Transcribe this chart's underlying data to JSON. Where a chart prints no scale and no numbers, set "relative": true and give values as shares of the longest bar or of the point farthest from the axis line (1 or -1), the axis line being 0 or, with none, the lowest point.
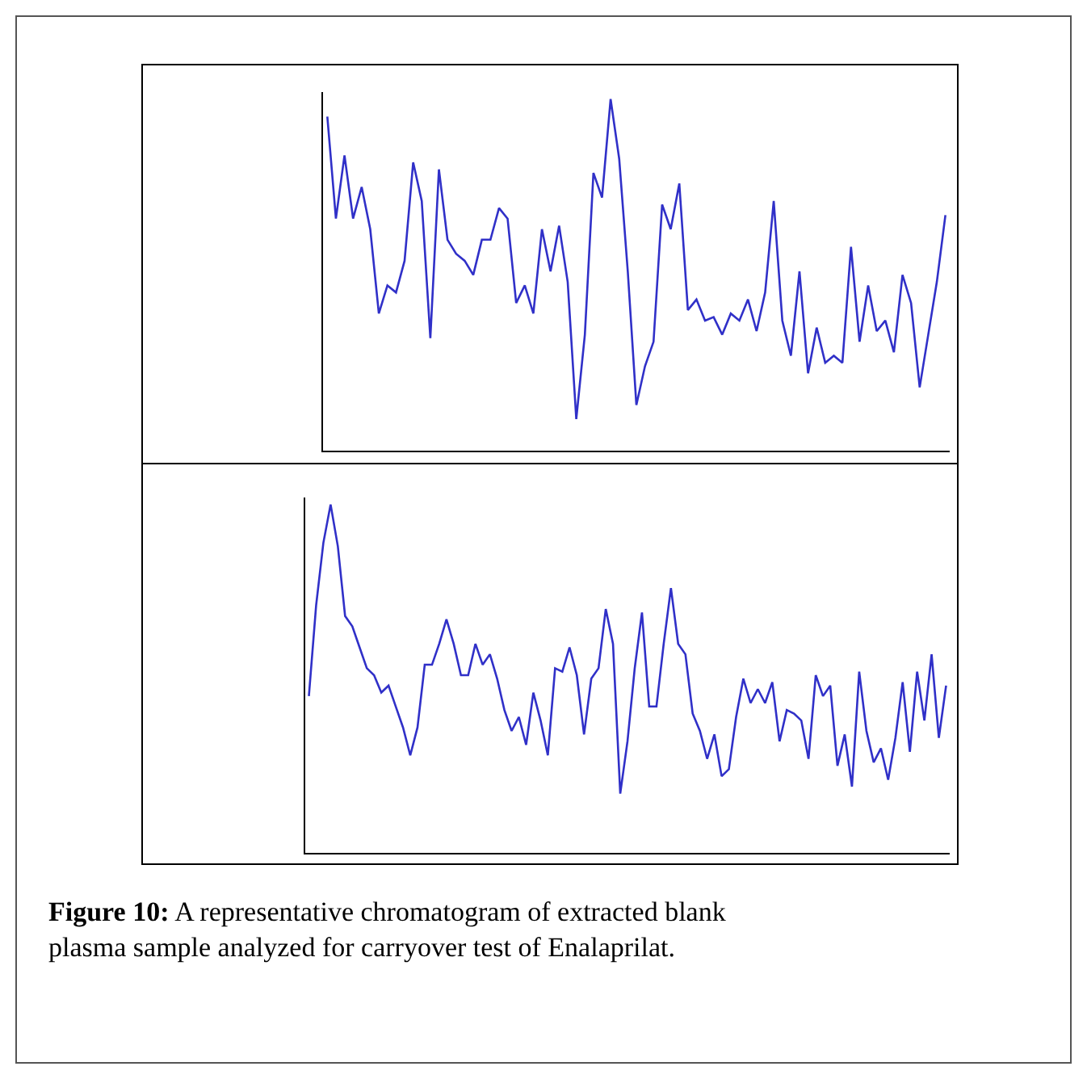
{
  "chart_data": [
    {
      "type": "line",
      "relative": true,
      "marker": "none",
      "line_style": "solid",
      "categories": [
        null,
        null,
        null,
        null,
        null,
        null,
        null,
        null,
        null,
        null,
        null,
        null,
        null,
        null,
        null,
        null,
        null,
        null,
        null,
        null,
        null,
        null,
        null,
        null,
        null,
        null,
        null,
        null,
        null,
        null,
        null,
        null,
        null,
        null,
        null,
        null,
        null,
        null,
        null,
        null,
        null,
        null,
        null,
        null,
        null,
        null,
        null,
        null,
        null,
        null,
        null,
        null,
        null,
        null,
        null,
        null,
        null,
        null,
        null,
        null,
        null,
        null,
        null,
        null,
        null,
        null,
        null,
        null,
        null,
        null,
        null,
        null,
        null
      ],
      "series": [
        {
          "color": "#3030c8",
          "values": [
            0.95,
            0.66,
            0.84,
            0.66,
            0.75,
            0.63,
            0.39,
            0.47,
            0.45,
            0.54,
            0.82,
            0.71,
            0.32,
            0.8,
            0.6,
            0.56,
            0.54,
            0.5,
            0.6,
            0.6,
            0.69,
            0.66,
            0.42,
            0.47,
            0.39,
            0.63,
            0.51,
            0.64,
            0.48,
            0.09,
            0.33,
            0.79,
            0.72,
            1.0,
            0.83,
            0.51,
            0.13,
            0.24,
            0.31,
            0.7,
            0.63,
            0.76,
            0.4,
            0.43,
            0.37,
            0.38,
            0.33,
            0.39,
            0.37,
            0.43,
            0.34,
            0.45,
            0.71,
            0.37,
            0.27,
            0.51,
            0.22,
            0.35,
            0.25,
            0.27,
            0.25,
            0.58,
            0.31,
            0.47,
            0.34,
            0.37,
            0.28,
            0.5,
            0.42,
            0.18,
            0.33,
            0.48,
            0.67
          ]
        }
      ]
    },
    {
      "type": "line",
      "relative": true,
      "marker": "none",
      "line_style": "solid",
      "categories": [
        null,
        null,
        null,
        null,
        null,
        null,
        null,
        null,
        null,
        null,
        null,
        null,
        null,
        null,
        null,
        null,
        null,
        null,
        null,
        null,
        null,
        null,
        null,
        null,
        null,
        null,
        null,
        null,
        null,
        null,
        null,
        null,
        null,
        null,
        null,
        null,
        null,
        null,
        null,
        null,
        null,
        null,
        null,
        null,
        null,
        null,
        null,
        null,
        null,
        null,
        null,
        null,
        null,
        null,
        null,
        null,
        null,
        null,
        null,
        null,
        null,
        null,
        null,
        null,
        null,
        null,
        null,
        null,
        null,
        null,
        null,
        null,
        null,
        null,
        null,
        null,
        null,
        null,
        null,
        null,
        null,
        null,
        null,
        null,
        null,
        null,
        null,
        null,
        null
      ],
      "series": [
        {
          "color": "#3030c8",
          "values": [
            0.45,
            0.71,
            0.89,
            1.0,
            0.88,
            0.68,
            0.65,
            0.59,
            0.53,
            0.51,
            0.46,
            0.48,
            0.42,
            0.36,
            0.28,
            0.36,
            0.54,
            0.54,
            0.6,
            0.67,
            0.6,
            0.51,
            0.51,
            0.6,
            0.54,
            0.57,
            0.5,
            0.41,
            0.35,
            0.39,
            0.31,
            0.46,
            0.38,
            0.28,
            0.53,
            0.52,
            0.59,
            0.51,
            0.34,
            0.5,
            0.53,
            0.7,
            0.6,
            0.17,
            0.32,
            0.53,
            0.69,
            0.42,
            0.42,
            0.6,
            0.76,
            0.6,
            0.57,
            0.4,
            0.35,
            0.27,
            0.34,
            0.22,
            0.24,
            0.39,
            0.5,
            0.43,
            0.47,
            0.43,
            0.49,
            0.32,
            0.41,
            0.4,
            0.38,
            0.27,
            0.51,
            0.45,
            0.48,
            0.25,
            0.34,
            0.19,
            0.52,
            0.35,
            0.26,
            0.3,
            0.21,
            0.33,
            0.49,
            0.29,
            0.52,
            0.38,
            0.57,
            0.33,
            0.48
          ]
        }
      ],
      "annotations": [
        "Figure 10: A representative chromatogram of extracted blank plasma sample analyzed for carryover test of Enalaprilat."
      ]
    }
  ]
}
